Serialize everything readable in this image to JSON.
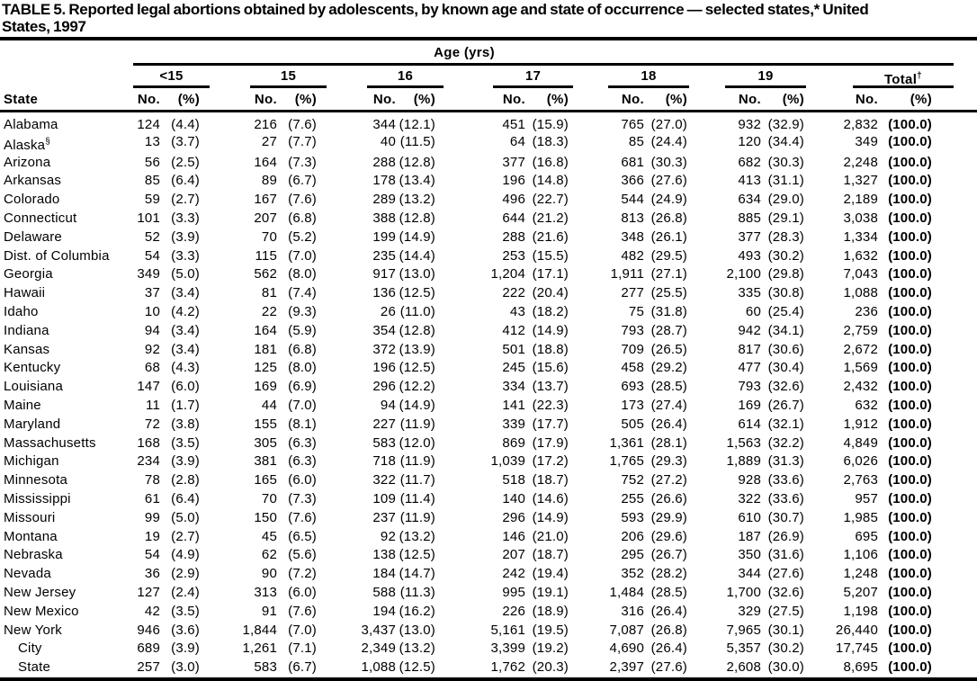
{
  "title": {
    "line1": "TABLE 5. Reported legal abortions obtained by adolescents, by known age and state of occurrence — selected states,* United",
    "line2": "States, 1997"
  },
  "table": {
    "header": {
      "age_spanner": "Age (yrs)",
      "state_label": "State",
      "no_label": "No.",
      "pct_label": "(%)",
      "groups": [
        {
          "label": "<15"
        },
        {
          "label": "15"
        },
        {
          "label": "16"
        },
        {
          "label": "17"
        },
        {
          "label": "18"
        },
        {
          "label": "19"
        },
        {
          "label": "Total",
          "sup": "†"
        }
      ]
    },
    "rows": [
      {
        "state": "Alabama",
        "cells": [
          "124",
          "(4.4)",
          "216",
          "(7.6)",
          "344",
          "(12.1)",
          "451",
          "(15.9)",
          "765",
          "(27.0)",
          "932",
          "(32.9)",
          "2,832",
          "(100.0)"
        ]
      },
      {
        "state": "Alaska",
        "sup": "§",
        "cells": [
          "13",
          "(3.7)",
          "27",
          "(7.7)",
          "40",
          "(11.5)",
          "64",
          "(18.3)",
          "85",
          "(24.4)",
          "120",
          "(34.4)",
          "349",
          "(100.0)"
        ]
      },
      {
        "state": "Arizona",
        "cells": [
          "56",
          "(2.5)",
          "164",
          "(7.3)",
          "288",
          "(12.8)",
          "377",
          "(16.8)",
          "681",
          "(30.3)",
          "682",
          "(30.3)",
          "2,248",
          "(100.0)"
        ]
      },
      {
        "state": "Arkansas",
        "cells": [
          "85",
          "(6.4)",
          "89",
          "(6.7)",
          "178",
          "(13.4)",
          "196",
          "(14.8)",
          "366",
          "(27.6)",
          "413",
          "(31.1)",
          "1,327",
          "(100.0)"
        ]
      },
      {
        "state": "Colorado",
        "cells": [
          "59",
          "(2.7)",
          "167",
          "(7.6)",
          "289",
          "(13.2)",
          "496",
          "(22.7)",
          "544",
          "(24.9)",
          "634",
          "(29.0)",
          "2,189",
          "(100.0)"
        ]
      },
      {
        "state": "Connecticut",
        "cells": [
          "101",
          "(3.3)",
          "207",
          "(6.8)",
          "388",
          "(12.8)",
          "644",
          "(21.2)",
          "813",
          "(26.8)",
          "885",
          "(29.1)",
          "3,038",
          "(100.0)"
        ]
      },
      {
        "state": "Delaware",
        "cells": [
          "52",
          "(3.9)",
          "70",
          "(5.2)",
          "199",
          "(14.9)",
          "288",
          "(21.6)",
          "348",
          "(26.1)",
          "377",
          "(28.3)",
          "1,334",
          "(100.0)"
        ]
      },
      {
        "state": "Dist. of Columbia",
        "cells": [
          "54",
          "(3.3)",
          "115",
          "(7.0)",
          "235",
          "(14.4)",
          "253",
          "(15.5)",
          "482",
          "(29.5)",
          "493",
          "(30.2)",
          "1,632",
          "(100.0)"
        ]
      },
      {
        "state": "Georgia",
        "cells": [
          "349",
          "(5.0)",
          "562",
          "(8.0)",
          "917",
          "(13.0)",
          "1,204",
          "(17.1)",
          "1,911",
          "(27.1)",
          "2,100",
          "(29.8)",
          "7,043",
          "(100.0)"
        ]
      },
      {
        "state": "Hawaii",
        "cells": [
          "37",
          "(3.4)",
          "81",
          "(7.4)",
          "136",
          "(12.5)",
          "222",
          "(20.4)",
          "277",
          "(25.5)",
          "335",
          "(30.8)",
          "1,088",
          "(100.0)"
        ]
      },
      {
        "state": "Idaho",
        "cells": [
          "10",
          "(4.2)",
          "22",
          "(9.3)",
          "26",
          "(11.0)",
          "43",
          "(18.2)",
          "75",
          "(31.8)",
          "60",
          "(25.4)",
          "236",
          "(100.0)"
        ]
      },
      {
        "state": "Indiana",
        "cells": [
          "94",
          "(3.4)",
          "164",
          "(5.9)",
          "354",
          "(12.8)",
          "412",
          "(14.9)",
          "793",
          "(28.7)",
          "942",
          "(34.1)",
          "2,759",
          "(100.0)"
        ]
      },
      {
        "state": "Kansas",
        "cells": [
          "92",
          "(3.4)",
          "181",
          "(6.8)",
          "372",
          "(13.9)",
          "501",
          "(18.8)",
          "709",
          "(26.5)",
          "817",
          "(30.6)",
          "2,672",
          "(100.0)"
        ]
      },
      {
        "state": "Kentucky",
        "cells": [
          "68",
          "(4.3)",
          "125",
          "(8.0)",
          "196",
          "(12.5)",
          "245",
          "(15.6)",
          "458",
          "(29.2)",
          "477",
          "(30.4)",
          "1,569",
          "(100.0)"
        ]
      },
      {
        "state": "Louisiana",
        "cells": [
          "147",
          "(6.0)",
          "169",
          "(6.9)",
          "296",
          "(12.2)",
          "334",
          "(13.7)",
          "693",
          "(28.5)",
          "793",
          "(32.6)",
          "2,432",
          "(100.0)"
        ]
      },
      {
        "state": "Maine",
        "cells": [
          "11",
          "(1.7)",
          "44",
          "(7.0)",
          "94",
          "(14.9)",
          "141",
          "(22.3)",
          "173",
          "(27.4)",
          "169",
          "(26.7)",
          "632",
          "(100.0)"
        ]
      },
      {
        "state": "Maryland",
        "cells": [
          "72",
          "(3.8)",
          "155",
          "(8.1)",
          "227",
          "(11.9)",
          "339",
          "(17.7)",
          "505",
          "(26.4)",
          "614",
          "(32.1)",
          "1,912",
          "(100.0)"
        ]
      },
      {
        "state": "Massachusetts",
        "cells": [
          "168",
          "(3.5)",
          "305",
          "(6.3)",
          "583",
          "(12.0)",
          "869",
          "(17.9)",
          "1,361",
          "(28.1)",
          "1,563",
          "(32.2)",
          "4,849",
          "(100.0)"
        ]
      },
      {
        "state": "Michigan",
        "cells": [
          "234",
          "(3.9)",
          "381",
          "(6.3)",
          "718",
          "(11.9)",
          "1,039",
          "(17.2)",
          "1,765",
          "(29.3)",
          "1,889",
          "(31.3)",
          "6,026",
          "(100.0)"
        ]
      },
      {
        "state": "Minnesota",
        "cells": [
          "78",
          "(2.8)",
          "165",
          "(6.0)",
          "322",
          "(11.7)",
          "518",
          "(18.7)",
          "752",
          "(27.2)",
          "928",
          "(33.6)",
          "2,763",
          "(100.0)"
        ]
      },
      {
        "state": "Mississippi",
        "cells": [
          "61",
          "(6.4)",
          "70",
          "(7.3)",
          "109",
          "(11.4)",
          "140",
          "(14.6)",
          "255",
          "(26.6)",
          "322",
          "(33.6)",
          "957",
          "(100.0)"
        ]
      },
      {
        "state": "Missouri",
        "cells": [
          "99",
          "(5.0)",
          "150",
          "(7.6)",
          "237",
          "(11.9)",
          "296",
          "(14.9)",
          "593",
          "(29.9)",
          "610",
          "(30.7)",
          "1,985",
          "(100.0)"
        ]
      },
      {
        "state": "Montana",
        "cells": [
          "19",
          "(2.7)",
          "45",
          "(6.5)",
          "92",
          "(13.2)",
          "146",
          "(21.0)",
          "206",
          "(29.6)",
          "187",
          "(26.9)",
          "695",
          "(100.0)"
        ]
      },
      {
        "state": "Nebraska",
        "cells": [
          "54",
          "(4.9)",
          "62",
          "(5.6)",
          "138",
          "(12.5)",
          "207",
          "(18.7)",
          "295",
          "(26.7)",
          "350",
          "(31.6)",
          "1,106",
          "(100.0)"
        ]
      },
      {
        "state": "Nevada",
        "cells": [
          "36",
          "(2.9)",
          "90",
          "(7.2)",
          "184",
          "(14.7)",
          "242",
          "(19.4)",
          "352",
          "(28.2)",
          "344",
          "(27.6)",
          "1,248",
          "(100.0)"
        ]
      },
      {
        "state": "New Jersey",
        "cells": [
          "127",
          "(2.4)",
          "313",
          "(6.0)",
          "588",
          "(11.3)",
          "995",
          "(19.1)",
          "1,484",
          "(28.5)",
          "1,700",
          "(32.6)",
          "5,207",
          "(100.0)"
        ]
      },
      {
        "state": "New Mexico",
        "cells": [
          "42",
          "(3.5)",
          "91",
          "(7.6)",
          "194",
          "(16.2)",
          "226",
          "(18.9)",
          "316",
          "(26.4)",
          "329",
          "(27.5)",
          "1,198",
          "(100.0)"
        ]
      },
      {
        "state": "New York",
        "cells": [
          "946",
          "(3.6)",
          "1,844",
          "(7.0)",
          "3,437",
          "(13.0)",
          "5,161",
          "(19.5)",
          "7,087",
          "(26.8)",
          "7,965",
          "(30.1)",
          "26,440",
          "(100.0)"
        ]
      },
      {
        "state": "City",
        "indent": true,
        "cells": [
          "689",
          "(3.9)",
          "1,261",
          "(7.1)",
          "2,349",
          "(13.2)",
          "3,399",
          "(19.2)",
          "4,690",
          "(26.4)",
          "5,357",
          "(30.2)",
          "17,745",
          "(100.0)"
        ]
      },
      {
        "state": "State",
        "indent": true,
        "cells": [
          "257",
          "(3.0)",
          "583",
          "(6.7)",
          "1,088",
          "(12.5)",
          "1,762",
          "(20.3)",
          "2,397",
          "(27.6)",
          "2,608",
          "(30.0)",
          "8,695",
          "(100.0)"
        ]
      }
    ]
  }
}
